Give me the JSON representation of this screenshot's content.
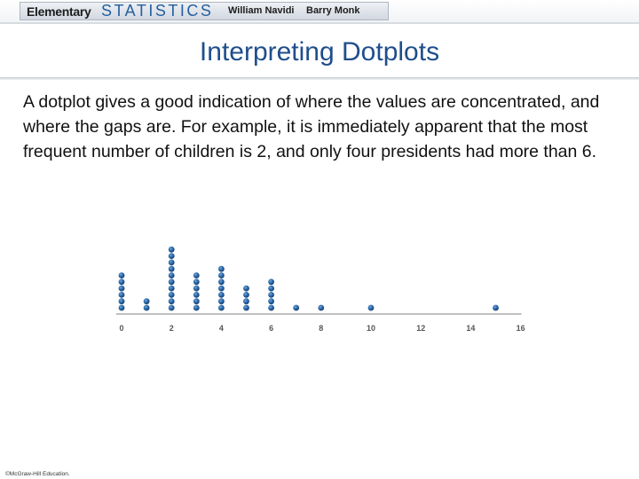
{
  "header": {
    "series_word": "Elementary",
    "series_title": "STATISTICS",
    "author1": "William Navidi",
    "author2": "Barry Monk"
  },
  "slide": {
    "title": "Interpreting Dotplots",
    "body": "A dotplot gives a good indication of where the values are concentrated, and where the gaps are. For example, it is immediately apparent that the most frequent number of children is 2, and only four presidents had more than 6."
  },
  "footer": {
    "copyright": "©McGraw-Hill Education."
  },
  "colors": {
    "dot": "#2a67a8",
    "axis": "#9a9a9a"
  },
  "chart_data": {
    "type": "scatter",
    "subtype": "dotplot",
    "x_ticks": [
      0,
      2,
      4,
      6,
      8,
      10,
      12,
      14,
      16
    ],
    "xlim": [
      0,
      16
    ],
    "points": [
      {
        "x": 0,
        "count": 6
      },
      {
        "x": 1,
        "count": 2
      },
      {
        "x": 2,
        "count": 10
      },
      {
        "x": 3,
        "count": 6
      },
      {
        "x": 4,
        "count": 7
      },
      {
        "x": 5,
        "count": 4
      },
      {
        "x": 6,
        "count": 5
      },
      {
        "x": 7,
        "count": 1
      },
      {
        "x": 8,
        "count": 1
      },
      {
        "x": 10,
        "count": 1
      },
      {
        "x": 15,
        "count": 1
      }
    ],
    "title": "",
    "xlabel": "",
    "ylabel": "",
    "grid": false
  }
}
